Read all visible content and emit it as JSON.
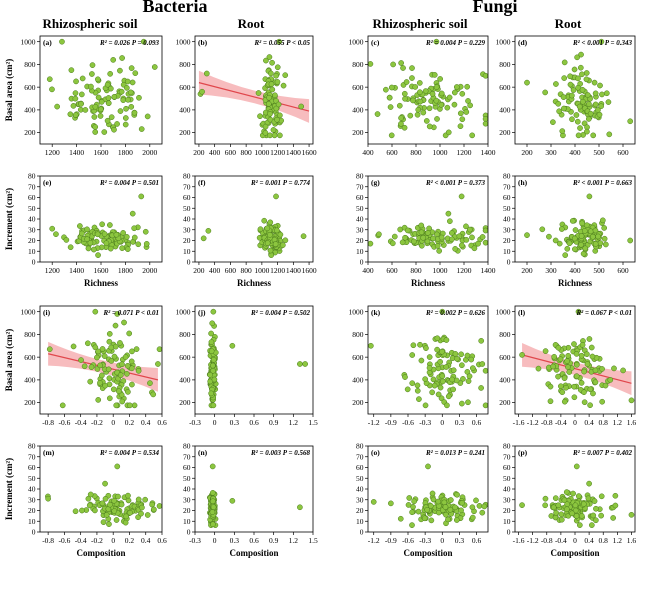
{
  "figure": {
    "bacteria_title": "Bacteria",
    "fungi_title": "Fungi",
    "col_headers": [
      "Rhizospheric soil",
      "Root",
      "Rhizospheric soil",
      "Root"
    ]
  },
  "colors": {
    "point_fill": "#8cc63f",
    "point_stroke": "#4a7a1c",
    "fit_line": "#e0474c",
    "fit_band": "#f4a6a8"
  },
  "chart_data": [
    {
      "panel": "(a)",
      "type": "scatter",
      "xlabel": "",
      "ylabel": "Basal area (cm²)",
      "xlim": [
        1100,
        2100
      ],
      "ylim": [
        100,
        1050
      ],
      "xticks": [
        1200,
        1400,
        1600,
        1800,
        2000
      ],
      "yticks": [
        200,
        400,
        600,
        800,
        1000
      ],
      "stats": [
        "R² = 0.026",
        "P = 0.093"
      ],
      "fit": null,
      "x_center": 1650,
      "x_spread": 160,
      "y_center": 480,
      "y_spread": 150,
      "n": 100,
      "outliers": [
        [
          1280,
          1000
        ],
        [
          1180,
          670
        ],
        [
          1700,
          840
        ],
        [
          1950,
          1000
        ]
      ]
    },
    {
      "panel": "(b)",
      "type": "scatter",
      "xlabel": "",
      "ylabel": "",
      "xlim": [
        150,
        1650
      ],
      "ylim": [
        100,
        1050
      ],
      "xticks": [
        200,
        400,
        600,
        800,
        1000,
        1200,
        1400,
        1600
      ],
      "yticks": [
        200,
        400,
        600,
        800,
        1000
      ],
      "stats": [
        "R² = 0.055",
        "P < 0.05"
      ],
      "fit": {
        "x0": 200,
        "y0": 640,
        "x1": 1600,
        "y1": 390
      },
      "x_center": 1120,
      "x_spread": 70,
      "y_center": 470,
      "y_spread": 160,
      "n": 95,
      "outliers": [
        [
          220,
          540
        ],
        [
          240,
          560
        ],
        [
          300,
          720
        ],
        [
          1220,
          1000
        ],
        [
          1500,
          430
        ]
      ]
    },
    {
      "panel": "(c)",
      "type": "scatter",
      "xlabel": "",
      "ylabel": "",
      "xlim": [
        400,
        1400
      ],
      "ylim": [
        100,
        1050
      ],
      "xticks": [
        400,
        600,
        800,
        1000,
        1200,
        1400
      ],
      "yticks": [
        200,
        400,
        600,
        800,
        1000
      ],
      "stats": [
        "R² = 0.004",
        "P = 0.229"
      ],
      "fit": null,
      "x_center": 950,
      "x_spread": 230,
      "y_center": 460,
      "y_spread": 150,
      "n": 100,
      "outliers": [
        [
          970,
          1000
        ],
        [
          1380,
          700
        ]
      ]
    },
    {
      "panel": "(d)",
      "type": "scatter",
      "xlabel": "",
      "ylabel": "",
      "xlim": [
        150,
        650
      ],
      "ylim": [
        100,
        1050
      ],
      "xticks": [
        200,
        300,
        400,
        500,
        600
      ],
      "yticks": [
        200,
        400,
        600,
        800,
        1000
      ],
      "stats": [
        "R² < 0.001",
        "P = 0.343"
      ],
      "fit": null,
      "x_center": 430,
      "x_spread": 50,
      "y_center": 470,
      "y_spread": 150,
      "n": 100,
      "outliers": [
        [
          200,
          640
        ],
        [
          630,
          300
        ],
        [
          510,
          1000
        ]
      ]
    },
    {
      "panel": "(e)",
      "type": "scatter",
      "xlabel": "Richness",
      "ylabel": "Increment (cm²)",
      "xlim": [
        1100,
        2100
      ],
      "ylim": [
        0,
        80
      ],
      "xticks": [
        1200,
        1400,
        1600,
        1800,
        2000
      ],
      "yticks": [
        0,
        10,
        20,
        30,
        40,
        50,
        60,
        70,
        80
      ],
      "stats": [
        "R² = 0.004",
        "P = 0.501"
      ],
      "fit": null,
      "x_center": 1650,
      "x_spread": 170,
      "y_center": 22,
      "y_spread": 6,
      "n": 100,
      "outliers": [
        [
          1930,
          61
        ],
        [
          1860,
          45
        ],
        [
          1200,
          31
        ]
      ]
    },
    {
      "panel": "(f)",
      "type": "scatter",
      "xlabel": "Richness",
      "ylabel": "",
      "xlim": [
        150,
        1650
      ],
      "ylim": [
        0,
        80
      ],
      "xticks": [
        200,
        400,
        600,
        800,
        1000,
        1200,
        1400,
        1600
      ],
      "yticks": [
        0,
        10,
        20,
        30,
        40,
        50,
        60,
        70,
        80
      ],
      "stats": [
        "R² = 0.001",
        "P = 0.774"
      ],
      "fit": null,
      "x_center": 1130,
      "x_spread": 80,
      "y_center": 22,
      "y_spread": 7,
      "n": 95,
      "outliers": [
        [
          260,
          22
        ],
        [
          320,
          29
        ],
        [
          1180,
          61
        ],
        [
          1530,
          24
        ]
      ]
    },
    {
      "panel": "(g)",
      "type": "scatter",
      "xlabel": "Richness",
      "ylabel": "",
      "xlim": [
        400,
        1400
      ],
      "ylim": [
        0,
        80
      ],
      "xticks": [
        400,
        600,
        800,
        1000,
        1200,
        1400
      ],
      "yticks": [
        0,
        10,
        20,
        30,
        40,
        50,
        60,
        70,
        80
      ],
      "stats": [
        "R² < 0.001",
        "P = 0.373"
      ],
      "fit": null,
      "x_center": 950,
      "x_spread": 230,
      "y_center": 22,
      "y_spread": 6,
      "n": 100,
      "outliers": [
        [
          1180,
          61
        ],
        [
          1070,
          45
        ]
      ]
    },
    {
      "panel": "(h)",
      "type": "scatter",
      "xlabel": "Richness",
      "ylabel": "",
      "xlim": [
        150,
        650
      ],
      "ylim": [
        0,
        80
      ],
      "xticks": [
        200,
        300,
        400,
        500,
        600
      ],
      "yticks": [
        0,
        10,
        20,
        30,
        40,
        50,
        60,
        70,
        80
      ],
      "stats": [
        "R² < 0.001",
        "P = 0.663"
      ],
      "fit": null,
      "x_center": 440,
      "x_spread": 50,
      "y_center": 22,
      "y_spread": 7,
      "n": 100,
      "outliers": [
        [
          460,
          61
        ],
        [
          630,
          20
        ],
        [
          200,
          25
        ]
      ]
    },
    {
      "panel": "(i)",
      "type": "scatter",
      "xlabel": "",
      "ylabel": "Basal area (cm²)",
      "xlim": [
        -0.9,
        0.6
      ],
      "ylim": [
        100,
        1050
      ],
      "xticks": [
        -0.8,
        -0.6,
        -0.4,
        -0.2,
        0.0,
        0.2,
        0.4,
        0.6
      ],
      "yticks": [
        200,
        400,
        600,
        800,
        1000
      ],
      "stats": [
        "R² = 0.071",
        "P < 0.01"
      ],
      "fit": {
        "x0": -0.8,
        "y0": 630,
        "x1": 0.55,
        "y1": 400
      },
      "x_center": 0.02,
      "x_spread": 0.22,
      "y_center": 470,
      "y_spread": 150,
      "n": 100,
      "outliers": [
        [
          -0.78,
          670
        ],
        [
          -0.22,
          1000
        ],
        [
          0.05,
          980
        ],
        [
          0.55,
          540
        ]
      ]
    },
    {
      "panel": "(j)",
      "type": "scatter",
      "xlabel": "",
      "ylabel": "",
      "xlim": [
        -0.3,
        1.5
      ],
      "ylim": [
        100,
        1050
      ],
      "xticks": [
        -0.3,
        0,
        0.3,
        0.6,
        0.9,
        1.2,
        1.5
      ],
      "yticks": [
        200,
        400,
        600,
        800,
        1000
      ],
      "stats": [
        "R² = 0.004",
        "P = 0.502"
      ],
      "fit": null,
      "x_center": -0.03,
      "x_spread": 0.02,
      "y_center": 470,
      "y_spread": 160,
      "n": 95,
      "outliers": [
        [
          0.27,
          700
        ],
        [
          1.3,
          540
        ],
        [
          1.38,
          540
        ],
        [
          -0.02,
          1000
        ]
      ]
    },
    {
      "panel": "(k)",
      "type": "scatter",
      "xlabel": "",
      "ylabel": "",
      "xlim": [
        -1.3,
        0.8
      ],
      "ylim": [
        100,
        1050
      ],
      "xticks": [
        -1.2,
        -0.9,
        -0.6,
        -0.3,
        0.0,
        0.3,
        0.6
      ],
      "yticks": [
        200,
        400,
        600,
        800,
        1000
      ],
      "stats": [
        "R² = 0.002",
        "P = 0.626"
      ],
      "fit": null,
      "x_center": 0.0,
      "x_spread": 0.35,
      "y_center": 470,
      "y_spread": 150,
      "n": 100,
      "outliers": [
        [
          -1.25,
          700
        ],
        [
          0.0,
          1000
        ],
        [
          0.7,
          540
        ]
      ]
    },
    {
      "panel": "(l)",
      "type": "scatter",
      "xlabel": "",
      "ylabel": "",
      "xlim": [
        -1.7,
        1.7
      ],
      "ylim": [
        100,
        1050
      ],
      "xticks": [
        -1.6,
        -1.2,
        -0.8,
        -0.4,
        0.0,
        0.4,
        0.8,
        1.2,
        1.6
      ],
      "yticks": [
        200,
        400,
        600,
        800,
        1000
      ],
      "stats": [
        "R² = 0.067",
        "P < 0.01"
      ],
      "fit": {
        "x0": -1.5,
        "y0": 620,
        "x1": 1.6,
        "y1": 370
      },
      "x_center": 0.0,
      "x_spread": 0.45,
      "y_center": 470,
      "y_spread": 150,
      "n": 100,
      "outliers": [
        [
          -1.5,
          620
        ],
        [
          1.6,
          220
        ],
        [
          0.1,
          1000
        ],
        [
          1.0,
          400
        ]
      ]
    },
    {
      "panel": "(m)",
      "type": "scatter",
      "xlabel": "Composition",
      "ylabel": "Increment (cm²)",
      "xlim": [
        -0.9,
        0.6
      ],
      "ylim": [
        0,
        80
      ],
      "xticks": [
        -0.8,
        -0.6,
        -0.4,
        -0.2,
        0.0,
        0.2,
        0.4,
        0.6
      ],
      "yticks": [
        0,
        10,
        20,
        30,
        40,
        50,
        60,
        70,
        80
      ],
      "stats": [
        "R² = 0.004",
        "P = 0.534"
      ],
      "fit": null,
      "x_center": 0.02,
      "x_spread": 0.22,
      "y_center": 22,
      "y_spread": 6,
      "n": 100,
      "outliers": [
        [
          0.05,
          61
        ],
        [
          -0.1,
          45
        ],
        [
          -0.8,
          31
        ],
        [
          0.5,
          21
        ]
      ]
    },
    {
      "panel": "(n)",
      "type": "scatter",
      "xlabel": "Composition",
      "ylabel": "",
      "xlim": [
        -0.3,
        1.5
      ],
      "ylim": [
        0,
        80
      ],
      "xticks": [
        -0.3,
        0,
        0.3,
        0.6,
        0.9,
        1.2,
        1.5
      ],
      "yticks": [
        0,
        10,
        20,
        30,
        40,
        50,
        60,
        70,
        80
      ],
      "stats": [
        "R² = 0.003",
        "P = 0.568"
      ],
      "fit": null,
      "x_center": -0.03,
      "x_spread": 0.02,
      "y_center": 22,
      "y_spread": 7,
      "n": 95,
      "outliers": [
        [
          -0.03,
          61
        ],
        [
          0.27,
          29
        ],
        [
          1.3,
          23
        ]
      ]
    },
    {
      "panel": "(o)",
      "type": "scatter",
      "xlabel": "Composition",
      "ylabel": "",
      "xlim": [
        -1.3,
        0.8
      ],
      "ylim": [
        0,
        80
      ],
      "xticks": [
        -1.2,
        -0.9,
        -0.6,
        -0.3,
        0.0,
        0.3,
        0.6
      ],
      "yticks": [
        0,
        10,
        20,
        30,
        40,
        50,
        60,
        70,
        80
      ],
      "stats": [
        "R² = 0.013",
        "P = 0.241"
      ],
      "fit": null,
      "x_center": 0.0,
      "x_spread": 0.32,
      "y_center": 22,
      "y_spread": 6,
      "n": 100,
      "outliers": [
        [
          -0.25,
          61
        ],
        [
          -1.2,
          28
        ],
        [
          0.7,
          18
        ]
      ]
    },
    {
      "panel": "(p)",
      "type": "scatter",
      "xlabel": "Composition",
      "ylabel": "",
      "xlim": [
        -1.7,
        1.7
      ],
      "ylim": [
        0,
        80
      ],
      "xticks": [
        -1.6,
        -1.2,
        -0.8,
        -0.4,
        0.0,
        0.4,
        0.8,
        1.2,
        1.6
      ],
      "yticks": [
        0,
        10,
        20,
        30,
        40,
        50,
        60,
        70,
        80
      ],
      "stats": [
        "R² = 0.007",
        "P = 0.402"
      ],
      "fit": null,
      "x_center": 0.0,
      "x_spread": 0.45,
      "y_center": 22,
      "y_spread": 7,
      "n": 100,
      "outliers": [
        [
          0.05,
          61
        ],
        [
          0.4,
          45
        ],
        [
          -1.5,
          25
        ],
        [
          1.6,
          16
        ]
      ]
    }
  ]
}
